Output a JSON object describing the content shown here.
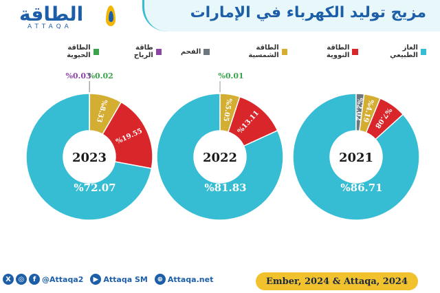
{
  "header": {
    "title": "مزيج توليد الكهرباء في الإمارات",
    "logo_ar": "الطاقة",
    "logo_en": "ATTAQA"
  },
  "legend": [
    {
      "label": "الغاز الطبيعي",
      "color": "#36bdd4"
    },
    {
      "label": "الطاقة النووية",
      "color": "#d9262a"
    },
    {
      "label": "الطاقة الشمسية",
      "color": "#d4ae32"
    },
    {
      "label": "الفحم",
      "color": "#6d7780"
    },
    {
      "label": "طاقة الرياح",
      "color": "#8a45a5"
    },
    {
      "label": "الطاقة الحيوية",
      "color": "#3aa34c"
    }
  ],
  "chart_data": [
    {
      "type": "pie",
      "center_label": "2023",
      "slices": [
        {
          "name": "الغاز الطبيعي",
          "value": 72.07,
          "label": "%72.07"
        },
        {
          "name": "الطاقة النووية",
          "value": 19.55,
          "label": "%19.55"
        },
        {
          "name": "الطاقة الشمسية",
          "value": 8.33,
          "label": "%8.33"
        },
        {
          "name": "الطاقة الحيوية",
          "value": 0.02,
          "label": "%0.02"
        },
        {
          "name": "طاقة الرياح",
          "value": 0.03,
          "label": "%0.03"
        }
      ]
    },
    {
      "type": "pie",
      "center_label": "2022",
      "slices": [
        {
          "name": "الغاز الطبيعي",
          "value": 81.83,
          "label": "%81.83"
        },
        {
          "name": "الطاقة النووية",
          "value": 13.11,
          "label": "%13.11"
        },
        {
          "name": "الطاقة الشمسية",
          "value": 5.05,
          "label": "%5.05"
        },
        {
          "name": "الطاقة الحيوية",
          "value": 0.01,
          "label": "%0.01"
        }
      ]
    },
    {
      "type": "pie",
      "center_label": "2021",
      "slices": [
        {
          "name": "الغاز الطبيعي",
          "value": 86.71,
          "label": "%86.71"
        },
        {
          "name": "الطاقة النووية",
          "value": 7.08,
          "label": "%7.08"
        },
        {
          "name": "الطاقة الشمسية",
          "value": 4.19,
          "label": "%4.19"
        },
        {
          "name": "الفحم",
          "value": 2.02,
          "label": "%2.02"
        }
      ]
    }
  ],
  "footer": {
    "twitter_icon": "X",
    "instagram_icon": "◎",
    "facebook_icon": "f",
    "handle": "@Attaqa2",
    "youtube_icon": "▶",
    "youtube_label": "Attaqa SM",
    "web_icon": "⊕",
    "website": "Attaqa.net",
    "source": "Ember, 2024 & Attaqa, 2024"
  }
}
